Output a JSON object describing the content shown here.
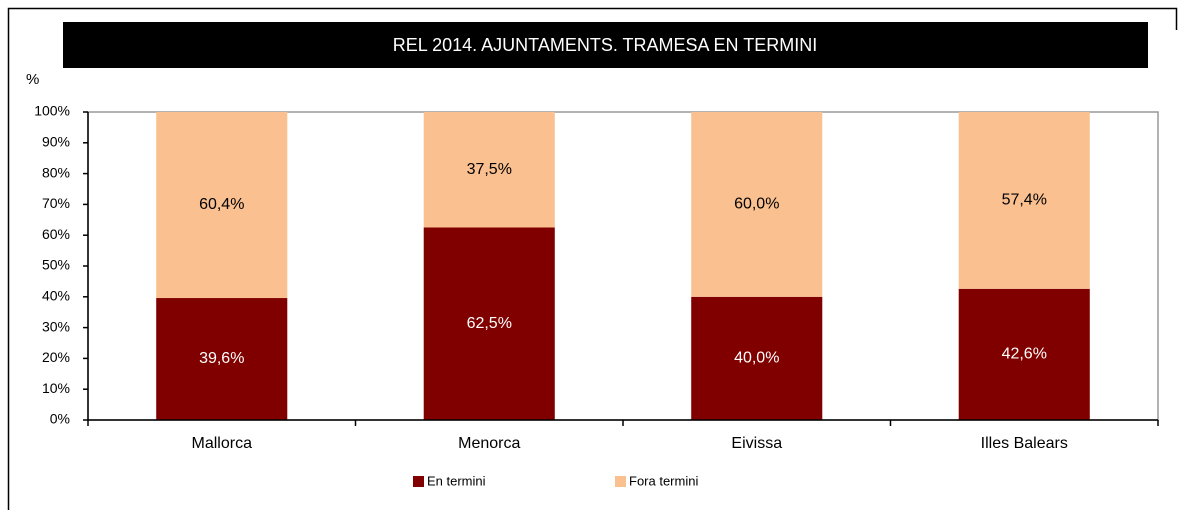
{
  "chart_data": {
    "type": "bar",
    "stacked": true,
    "title": "REL 2014. AJUNTAMENTS. TRAMESA EN TERMINI",
    "ylabel": "%",
    "categories": [
      "Mallorca",
      "Menorca",
      "Eivissa",
      "Illes Balears"
    ],
    "series": [
      {
        "name": "En termini",
        "color": "#800000",
        "values": [
          39.6,
          62.5,
          40.0,
          42.6
        ],
        "value_labels": [
          "39,6%",
          "62,5%",
          "40,0%",
          "42,6%"
        ]
      },
      {
        "name": "Fora termini",
        "color": "#fac090",
        "values": [
          60.4,
          37.5,
          60.0,
          57.4
        ],
        "value_labels": [
          "60,4%",
          "37,5%",
          "60,0%",
          "57,4%"
        ]
      }
    ],
    "ylim": [
      0,
      100
    ],
    "yticks": [
      {
        "value": 0,
        "label": "0%"
      },
      {
        "value": 10,
        "label": "10%"
      },
      {
        "value": 20,
        "label": "20%"
      },
      {
        "value": 30,
        "label": "30%"
      },
      {
        "value": 40,
        "label": "40%"
      },
      {
        "value": 50,
        "label": "50%"
      },
      {
        "value": 60,
        "label": "60%"
      },
      {
        "value": 70,
        "label": "70%"
      },
      {
        "value": 80,
        "label": "80%"
      },
      {
        "value": 90,
        "label": "90%"
      },
      {
        "value": 100,
        "label": "100%"
      }
    ],
    "legend": "bottom"
  }
}
